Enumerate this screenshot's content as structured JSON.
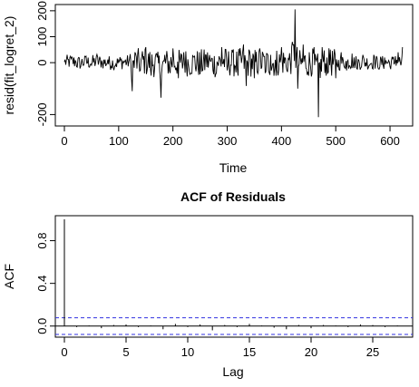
{
  "chart_data": [
    {
      "type": "line",
      "title": "",
      "xlabel": "Time",
      "ylabel": "resid(fit_logret_2)",
      "xlim": [
        0,
        625
      ],
      "ylim": [
        -230,
        210
      ],
      "xticks": [
        0,
        100,
        200,
        300,
        400,
        500,
        600
      ],
      "yticks": [
        -200,
        0,
        100,
        200
      ],
      "ytick_labels": [
        "-200",
        "0",
        "100",
        "200"
      ],
      "series": [
        {
          "points": [
            [
              0,
              3
            ],
            [
              10,
              20
            ],
            [
              20,
              8
            ],
            [
              30,
              -15
            ],
            [
              40,
              25
            ],
            [
              50,
              -10
            ],
            [
              60,
              32
            ],
            [
              70,
              -5
            ],
            [
              80,
              12
            ],
            [
              90,
              -18
            ],
            [
              100,
              10
            ],
            [
              110,
              5
            ],
            [
              120,
              15
            ],
            [
              125,
              -110
            ],
            [
              130,
              40
            ],
            [
              140,
              -30
            ],
            [
              150,
              60
            ],
            [
              160,
              -50
            ],
            [
              170,
              35
            ],
            [
              178,
              -135
            ],
            [
              185,
              30
            ],
            [
              195,
              -40
            ],
            [
              200,
              55
            ],
            [
              210,
              -60
            ],
            [
              220,
              40
            ],
            [
              230,
              -30
            ],
            [
              240,
              25
            ],
            [
              250,
              -45
            ],
            [
              260,
              30
            ],
            [
              270,
              5
            ],
            [
              280,
              -40
            ],
            [
              290,
              60
            ],
            [
              300,
              -30
            ],
            [
              310,
              40
            ],
            [
              320,
              -50
            ],
            [
              330,
              70
            ],
            [
              335,
              -90
            ],
            [
              340,
              50
            ],
            [
              350,
              -60
            ],
            [
              360,
              55
            ],
            [
              370,
              -40
            ],
            [
              380,
              30
            ],
            [
              390,
              -50
            ],
            [
              400,
              60
            ],
            [
              410,
              -30
            ],
            [
              420,
              80
            ],
            [
              425,
              205
            ],
            [
              430,
              -100
            ],
            [
              440,
              70
            ],
            [
              450,
              -50
            ],
            [
              460,
              60
            ],
            [
              468,
              -210
            ],
            [
              475,
              60
            ],
            [
              480,
              -40
            ],
            [
              490,
              50
            ],
            [
              500,
              -60
            ],
            [
              510,
              40
            ],
            [
              520,
              -30
            ],
            [
              530,
              35
            ],
            [
              540,
              -25
            ],
            [
              550,
              30
            ],
            [
              560,
              -20
            ],
            [
              570,
              30
            ],
            [
              580,
              -25
            ],
            [
              590,
              20
            ],
            [
              600,
              -15
            ],
            [
              610,
              25
            ],
            [
              615,
              40
            ],
            [
              620,
              -10
            ],
            [
              623,
              60
            ]
          ]
        }
      ]
    },
    {
      "type": "bar",
      "title": "ACF of Residuals",
      "xlabel": "Lag",
      "ylabel": "ACF",
      "xlim": [
        0,
        27.5
      ],
      "ylim": [
        -0.07,
        1.0
      ],
      "xticks": [
        0,
        5,
        10,
        15,
        20,
        25
      ],
      "yticks": [
        0.0,
        0.4,
        0.8
      ],
      "ytick_labels": [
        "0.0",
        "0.4",
        "0.8"
      ],
      "confidence_bound": 0.078,
      "lags": [
        0,
        1,
        2,
        3,
        4,
        5,
        6,
        7,
        8,
        9,
        10,
        11,
        12,
        13,
        14,
        15,
        16,
        17,
        18,
        19,
        20,
        21,
        22,
        23,
        24,
        25,
        26,
        27
      ],
      "acf": [
        1.0,
        -0.01,
        0.005,
        -0.02,
        0.01,
        0.015,
        -0.01,
        0.005,
        -0.03,
        0.02,
        -0.01,
        0.015,
        -0.04,
        0.01,
        -0.01,
        0.02,
        0.005,
        -0.015,
        -0.03,
        0.01,
        -0.02,
        0.01,
        0.005,
        -0.01,
        0.015,
        0.01,
        -0.01,
        0.005
      ]
    }
  ]
}
